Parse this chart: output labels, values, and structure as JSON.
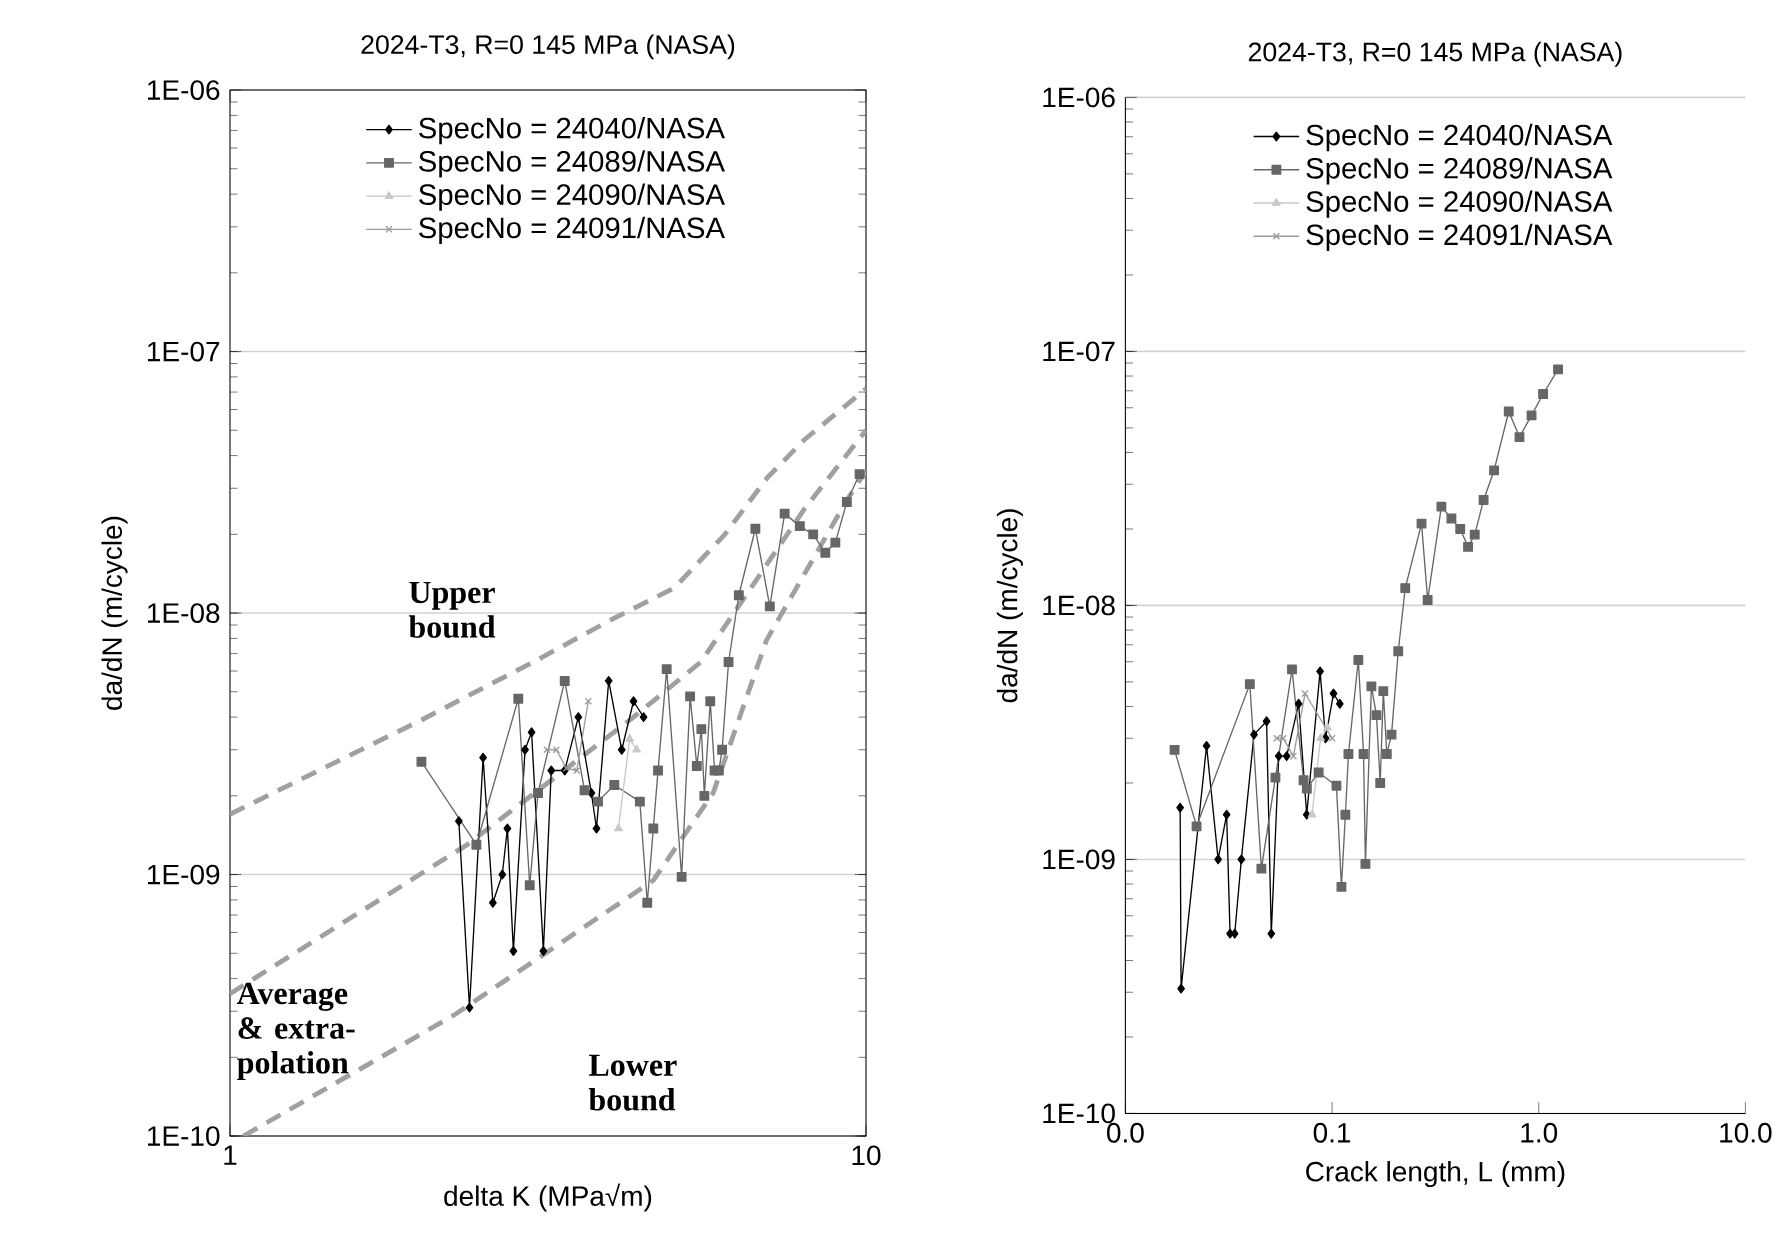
{
  "chart_data": [
    {
      "type": "line",
      "title": "2024-T3, R=0 145 MPa (NASA)",
      "xlabel": "delta K (MPa√m)",
      "ylabel": "da/dN (m/cycle)",
      "log": "xy",
      "xlim": [
        1,
        10
      ],
      "ylim": [
        1e-10,
        1e-06
      ],
      "xticks": [
        1,
        10
      ],
      "yticks": [
        {
          "value": 1e-10,
          "label": "1E-10"
        },
        {
          "value": 1e-09,
          "label": "1E-09"
        },
        {
          "value": 1e-08,
          "label": "1E-08"
        },
        {
          "value": 1e-07,
          "label": "1E-07"
        },
        {
          "value": 1e-06,
          "label": "1E-06"
        }
      ],
      "grid": "y",
      "legend": "top",
      "series": [
        {
          "name": "SpecNo = 24040/NASA",
          "color": "#000000",
          "marker": "diamond",
          "line_style": "solid",
          "x": [
            2.29,
            2.38,
            2.5,
            2.59,
            2.68,
            2.73,
            2.79,
            2.91,
            2.98,
            3.11,
            3.2,
            3.36,
            3.53,
            3.7,
            3.77,
            3.94,
            4.13,
            4.31,
            4.47
          ],
          "values": [
            1.6e-09,
            3.1e-10,
            2.8e-09,
            7.8e-10,
            1e-09,
            1.5e-09,
            5.1e-10,
            3e-09,
            3.5e-09,
            5.1e-10,
            2.5e-09,
            2.5e-09,
            4e-09,
            2.05e-09,
            1.5e-09,
            5.5e-09,
            3e-09,
            4.6e-09,
            4e-09
          ]
        },
        {
          "name": "SpecNo = 24089/NASA",
          "color": "#666666",
          "marker": "square",
          "line_style": "solid",
          "x": [
            2.0,
            2.44,
            2.84,
            2.96,
            3.05,
            3.36,
            3.61,
            3.79,
            4.02,
            4.41,
            4.53,
            4.63,
            4.71,
            4.86,
            5.13,
            5.29,
            5.42,
            5.51,
            5.57,
            5.69,
            5.78,
            5.87,
            5.94,
            6.08,
            6.31,
            6.7,
            7.06,
            7.45,
            7.87,
            8.26,
            8.63,
            8.95,
            9.33,
            9.77
          ],
          "values": [
            2.7e-09,
            1.3e-09,
            4.7e-09,
            9.1e-10,
            2.05e-09,
            5.5e-09,
            2.1e-09,
            1.9e-09,
            2.2e-09,
            1.9e-09,
            7.8e-10,
            1.5e-09,
            2.5e-09,
            6.1e-09,
            9.8e-10,
            4.8e-09,
            2.6e-09,
            3.6e-09,
            2e-09,
            4.6e-09,
            2.5e-09,
            2.5e-09,
            3e-09,
            6.5e-09,
            1.17e-08,
            2.1e-08,
            1.06e-08,
            2.4e-08,
            2.15e-08,
            2e-08,
            1.7e-08,
            1.86e-08,
            2.66e-08,
            3.4e-08
          ]
        },
        {
          "name": "SpecNo = 24090/NASA",
          "color": "#c8c8c8",
          "marker": "triangle",
          "line_style": "solid",
          "x": [
            4.08,
            4.25,
            4.36
          ],
          "values": [
            1.5e-09,
            3.3e-09,
            3e-09
          ]
        },
        {
          "name": "SpecNo = 24091/NASA",
          "color": "#9a9a9a",
          "marker": "cross",
          "line_style": "solid",
          "x": [
            3.15,
            3.26,
            3.38,
            3.51,
            3.66
          ],
          "values": [
            3e-09,
            3e-09,
            2.55e-09,
            2.5e-09,
            4.6e-09
          ]
        },
        {
          "type": "line",
          "color": "#a0a0a0",
          "marker": "none",
          "line_style": "dashed",
          "x": [
            1.0,
            2.0,
            3.0,
            4.0,
            5.0,
            6.0,
            7.0,
            8.0,
            10.0
          ],
          "values": [
            1.7e-09,
            3.9e-09,
            6.5e-09,
            9.5e-09,
            1.25e-08,
            2e-08,
            3.3e-08,
            4.6e-08,
            7.2e-08
          ]
        },
        {
          "type": "line",
          "color": "#a0a0a0",
          "marker": "none",
          "line_style": "dashed",
          "x": [
            1.0,
            2.36,
            4.31,
            5.5,
            6.2,
            8.0,
            10.0
          ],
          "values": [
            3.5e-10,
            1.3e-09,
            4e-09,
            6.5e-09,
            1e-08,
            2.5e-08,
            5e-08
          ]
        },
        {
          "type": "line",
          "color": "#a0a0a0",
          "marker": "none",
          "line_style": "dashed",
          "x": [
            1.05,
            2.25,
            4.63,
            5.75,
            6.98,
            9.33,
            10.0
          ],
          "values": [
            1e-10,
            2.9e-10,
            9.5e-10,
            2.05e-09,
            7.9e-09,
            2.7e-08,
            3.5e-08
          ]
        }
      ],
      "annotations": [
        "Upper bound",
        "Average & extra-polation",
        "Lower bound"
      ]
    },
    {
      "type": "line",
      "title": "2024-T3, R=0 145 MPa (NASA)",
      "xlabel": "Crack length, L (mm)",
      "ylabel": "da/dN (m/cycle)",
      "log": "xy",
      "xlim": [
        0.01,
        10
      ],
      "ylim": [
        1e-10,
        1e-06
      ],
      "xticks": [
        {
          "value": 0.01,
          "label": "0.0"
        },
        {
          "value": 0.1,
          "label": "0.1"
        },
        {
          "value": 1,
          "label": "1.0"
        },
        {
          "value": 10,
          "label": "10.0"
        }
      ],
      "yticks": [
        {
          "value": 1e-10,
          "label": "1E-10"
        },
        {
          "value": 1e-09,
          "label": "1E-09"
        },
        {
          "value": 1e-08,
          "label": "1E-08"
        },
        {
          "value": 1e-07,
          "label": "1E-07"
        },
        {
          "value": 1e-06,
          "label": "1E-06"
        }
      ],
      "grid": "y",
      "legend": "top",
      "series": [
        {
          "name": "SpecNo = 24040/NASA",
          "color": "#000000",
          "marker": "diamond",
          "line_style": "solid",
          "x": [
            0.0184,
            0.0186,
            0.0247,
            0.0281,
            0.0309,
            0.0321,
            0.0338,
            0.0364,
            0.0419,
            0.0482,
            0.0508,
            0.0552,
            0.0603,
            0.0689,
            0.0754,
            0.0875,
            0.093,
            0.1016,
            0.109
          ],
          "values": [
            1.6e-09,
            3.1e-10,
            2.8e-09,
            1e-09,
            1.5e-09,
            5.1e-10,
            5.1e-10,
            1e-09,
            3.1e-09,
            3.5e-09,
            5.1e-10,
            2.55e-09,
            2.55e-09,
            4.1e-09,
            1.5e-09,
            5.5e-09,
            3e-09,
            4.5e-09,
            4.1e-09
          ]
        },
        {
          "name": "SpecNo = 24089/NASA",
          "color": "#666666",
          "marker": "square",
          "line_style": "solid",
          "x": [
            0.0173,
            0.0221,
            0.04,
            0.0455,
            0.0532,
            0.064,
            0.0728,
            0.0755,
            0.0861,
            0.105,
            0.111,
            0.116,
            0.12,
            0.134,
            0.142,
            0.145,
            0.155,
            0.164,
            0.171,
            0.177,
            0.184,
            0.194,
            0.209,
            0.226,
            0.271,
            0.29,
            0.338,
            0.378,
            0.417,
            0.455,
            0.49,
            0.541,
            0.608,
            0.716,
            0.807,
            0.923,
            1.05,
            1.24
          ],
          "values": [
            2.7e-09,
            1.35e-09,
            4.9e-09,
            9.2e-10,
            2.1e-09,
            5.6e-09,
            2.05e-09,
            1.9e-09,
            2.2e-09,
            1.95e-09,
            7.8e-10,
            1.5e-09,
            2.6e-09,
            6.1e-09,
            2.6e-09,
            9.6e-10,
            4.8e-09,
            3.7e-09,
            2e-09,
            4.6e-09,
            2.6e-09,
            3.1e-09,
            6.6e-09,
            1.17e-08,
            2.1e-08,
            1.05e-08,
            2.45e-08,
            2.2e-08,
            2e-08,
            1.7e-08,
            1.9e-08,
            2.6e-08,
            3.4e-08,
            5.8e-08,
            4.6e-08,
            5.6e-08,
            6.8e-08,
            8.5e-08
          ]
        },
        {
          "name": "SpecNo = 24090/NASA",
          "color": "#c8c8c8",
          "marker": "triangle",
          "line_style": "solid",
          "x": [
            0.08,
            0.088,
            0.095
          ],
          "values": [
            1.5e-09,
            3e-09,
            3.3e-09
          ]
        },
        {
          "name": "SpecNo = 24091/NASA",
          "color": "#9a9a9a",
          "marker": "cross",
          "line_style": "solid",
          "x": [
            0.054,
            0.058,
            0.065,
            0.074,
            0.1
          ],
          "values": [
            3e-09,
            3e-09,
            2.55e-09,
            4.5e-09,
            3e-09
          ]
        }
      ]
    }
  ]
}
